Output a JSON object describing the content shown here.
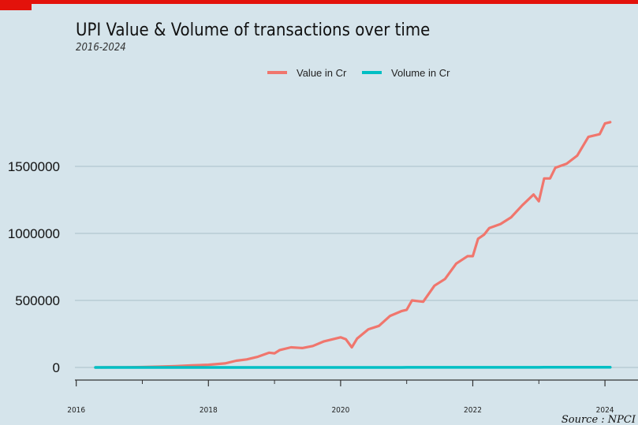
{
  "chart_data": {
    "type": "line",
    "title": "UPI Value & Volume of transactions over time",
    "subtitle": "2016-2024",
    "source": "Source : NPCI",
    "xlabel": "",
    "ylabel": "",
    "xlim": [
      2015.98,
      2024.5
    ],
    "ylim": [
      -50000,
      2000000
    ],
    "grid": "horizontal",
    "legend_position": "top",
    "x_ticks": [
      "2016",
      "2018",
      "2020",
      "2022",
      "2024"
    ],
    "y_ticks": [
      "0",
      "500000",
      "1000000",
      "1500000"
    ],
    "colors": {
      "value": "#f0766d",
      "volume": "#00bfc4",
      "accent": "#e3120b",
      "background": "#d5e4eb",
      "grid": "#a9bfca"
    },
    "x": [
      2016.29,
      2016.5,
      2016.75,
      2017.0,
      2017.25,
      2017.5,
      2017.75,
      2018.0,
      2018.25,
      2018.42,
      2018.58,
      2018.75,
      2018.92,
      2019.0,
      2019.08,
      2019.25,
      2019.42,
      2019.58,
      2019.75,
      2019.92,
      2020.0,
      2020.08,
      2020.17,
      2020.25,
      2020.42,
      2020.58,
      2020.75,
      2020.92,
      2021.0,
      2021.08,
      2021.25,
      2021.42,
      2021.58,
      2021.75,
      2021.92,
      2022.0,
      2022.08,
      2022.17,
      2022.25,
      2022.42,
      2022.58,
      2022.75,
      2022.92,
      2023.0,
      2023.08,
      2023.17,
      2023.25,
      2023.42,
      2023.58,
      2023.75,
      2023.92,
      2024.0,
      2024.08
    ],
    "series": [
      {
        "name": "Value in Cr",
        "key": "value",
        "values": [
          0,
          500,
          1000,
          3000,
          6000,
          10000,
          15000,
          20000,
          30000,
          50000,
          60000,
          80000,
          110000,
          105000,
          130000,
          150000,
          145000,
          160000,
          195000,
          215000,
          225000,
          210000,
          150000,
          215000,
          285000,
          310000,
          385000,
          420000,
          430000,
          500000,
          490000,
          610000,
          660000,
          775000,
          830000,
          830000,
          960000,
          990000,
          1040000,
          1070000,
          1120000,
          1210000,
          1290000,
          1240000,
          1410000,
          1410000,
          1490000,
          1520000,
          1580000,
          1720000,
          1740000,
          1820000,
          1830000
        ]
      },
      {
        "name": "Volume in Cr",
        "key": "volume",
        "values": [
          0,
          0,
          0,
          1,
          3,
          5,
          8,
          15,
          30,
          50,
          60,
          75,
          80,
          90,
          100,
          105,
          115,
          135,
          150,
          165,
          180,
          150,
          130,
          180,
          220,
          240,
          270,
          290,
          300,
          320,
          320,
          400,
          450,
          500,
          520,
          520,
          560,
          560,
          580,
          600,
          680,
          750,
          800,
          820,
          900,
          930,
          950,
          980,
          1000,
          1020,
          1040,
          1080,
          1100
        ]
      }
    ]
  }
}
